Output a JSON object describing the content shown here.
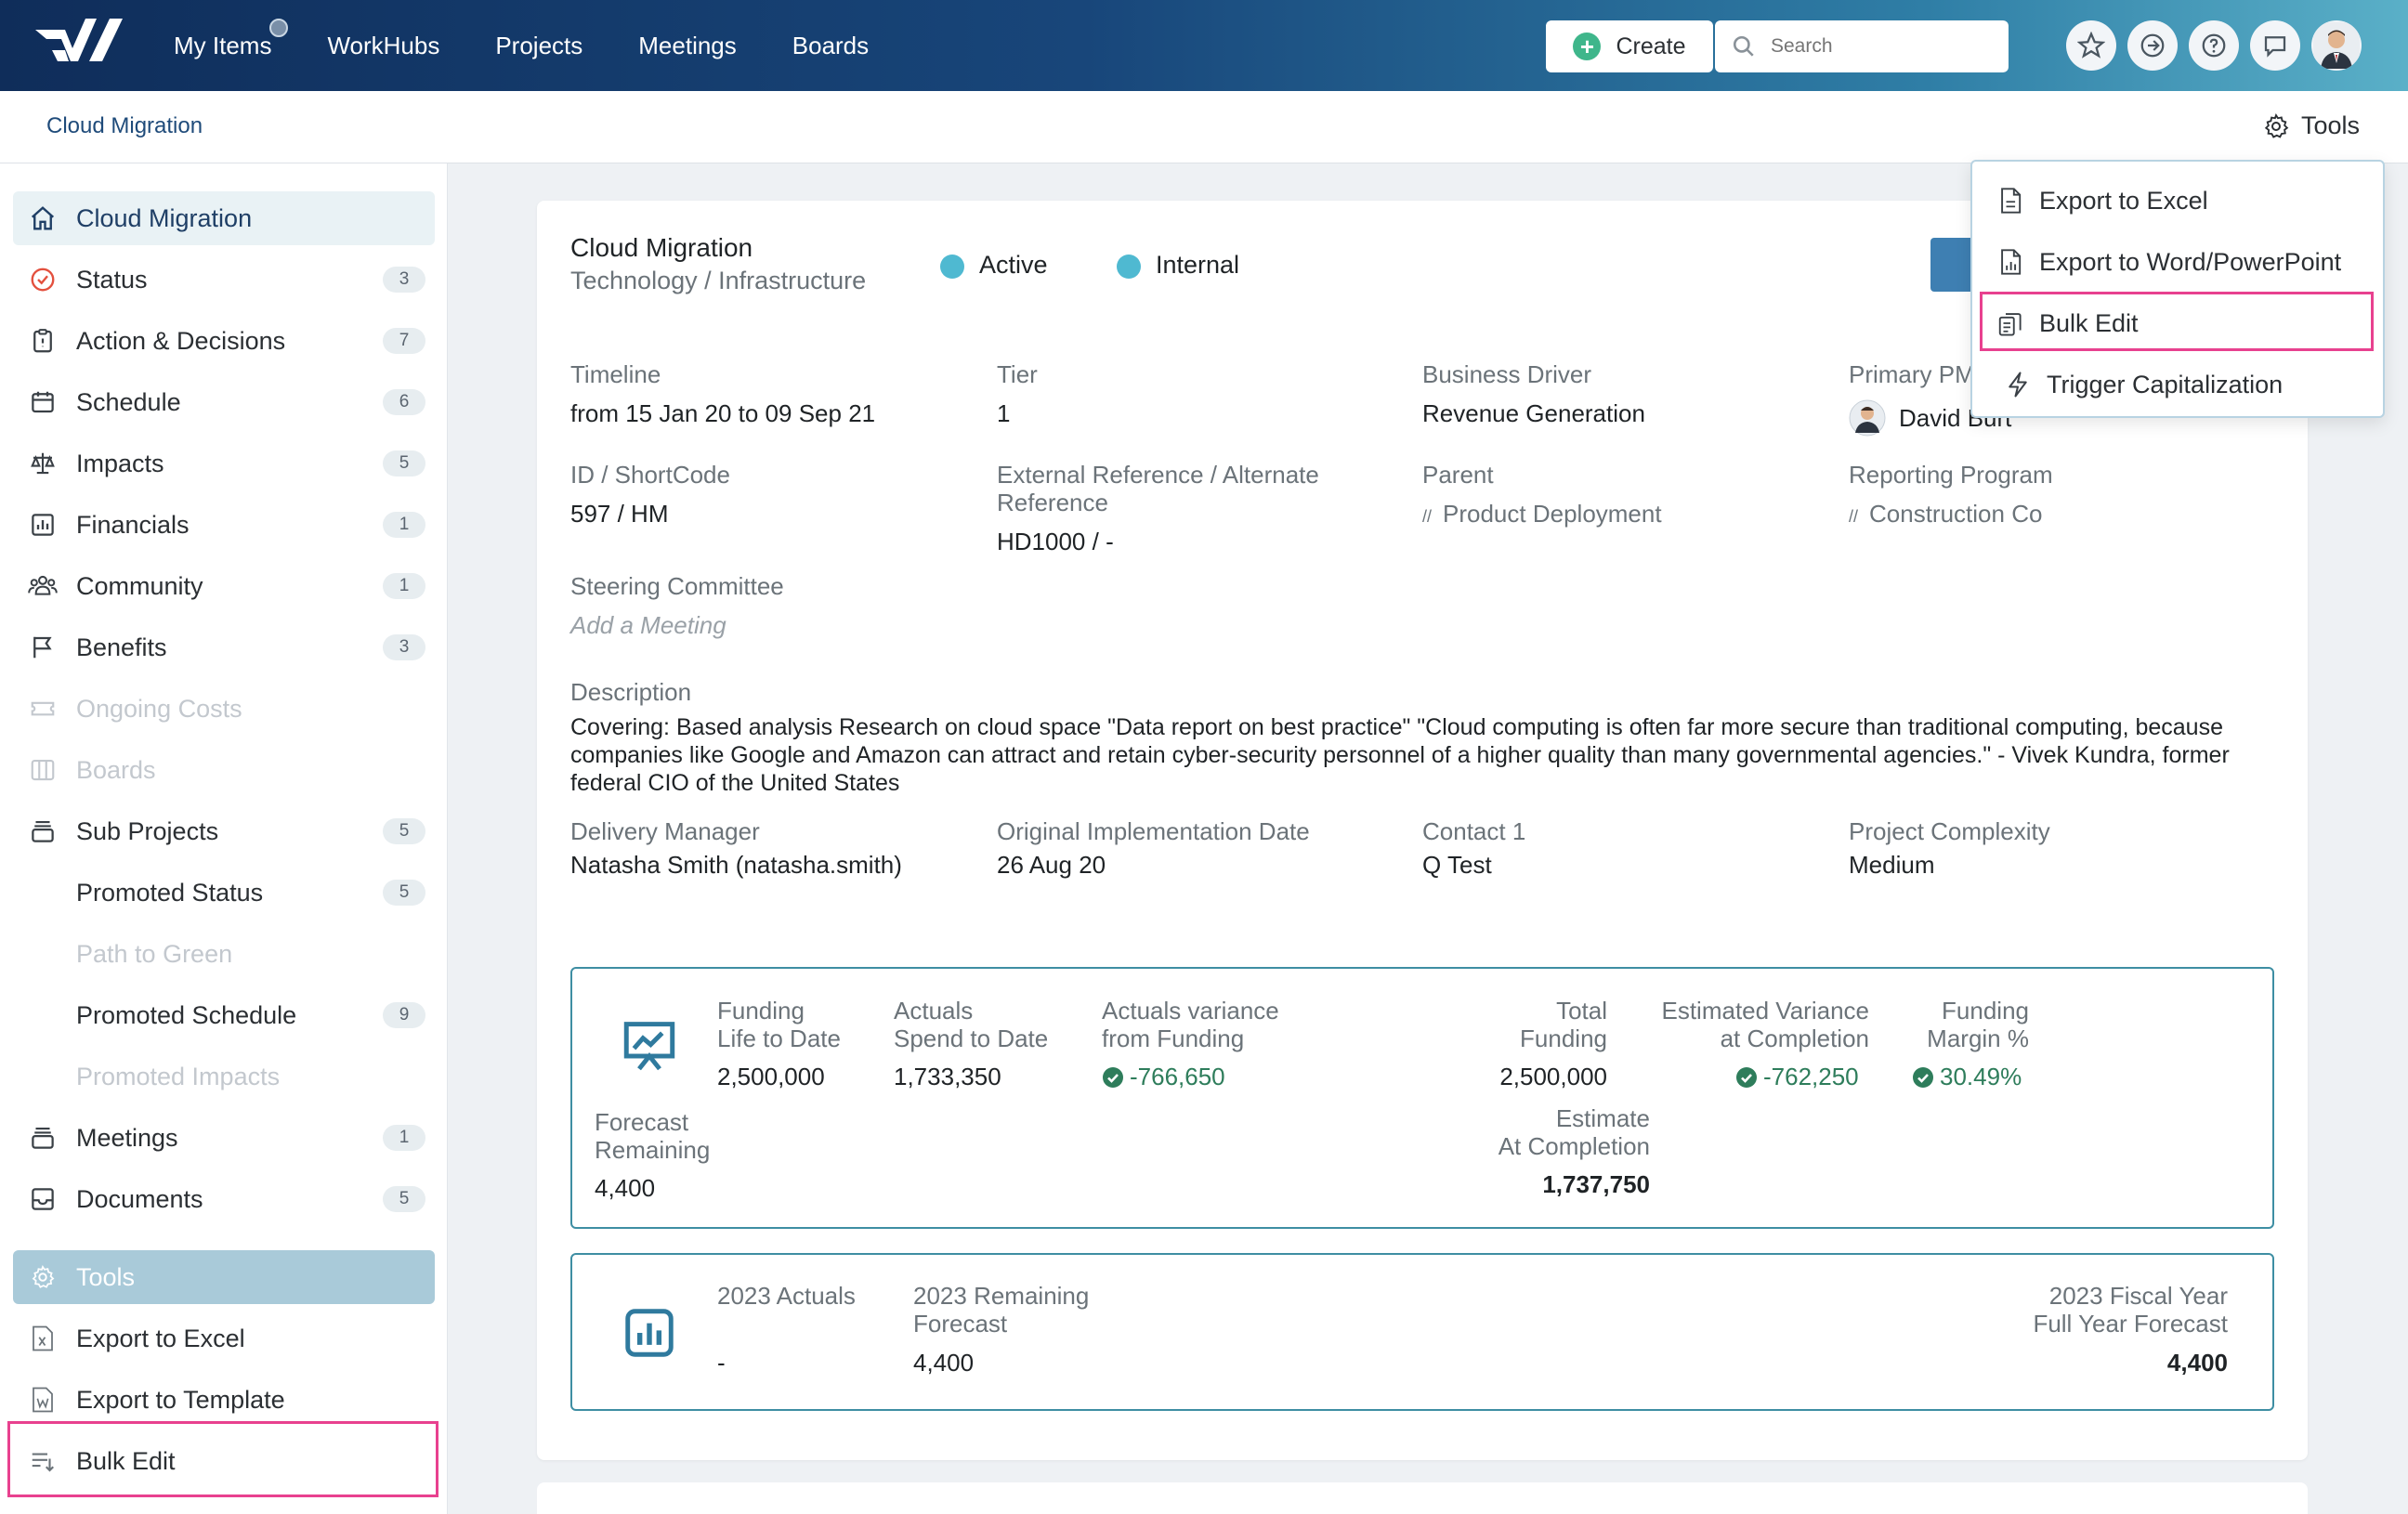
{
  "nav": {
    "items": [
      "My Items",
      "WorkHubs",
      "Projects",
      "Meetings",
      "Boards"
    ],
    "create_label": "Create",
    "search_placeholder": "Search",
    "brand_color": "#18467a"
  },
  "breadcrumb": {
    "title": "Cloud Migration",
    "tools_label": "Tools"
  },
  "sidebar": {
    "items": [
      {
        "label": "Cloud Migration",
        "icon": "home-icon",
        "badge": ""
      },
      {
        "label": "Status",
        "icon": "status-icon",
        "badge": "3"
      },
      {
        "label": "Action & Decisions",
        "icon": "clipboard-icon",
        "badge": "7"
      },
      {
        "label": "Schedule",
        "icon": "calendar-icon",
        "badge": "6"
      },
      {
        "label": "Impacts",
        "icon": "scale-icon",
        "badge": "5"
      },
      {
        "label": "Financials",
        "icon": "chart-icon",
        "badge": "1"
      },
      {
        "label": "Community",
        "icon": "people-icon",
        "badge": "1"
      },
      {
        "label": "Benefits",
        "icon": "flag-icon",
        "badge": "3"
      },
      {
        "label": "Ongoing Costs",
        "icon": "ticket-icon",
        "badge": ""
      },
      {
        "label": "Boards",
        "icon": "board-icon",
        "badge": ""
      },
      {
        "label": "Sub Projects",
        "icon": "stack-icon",
        "badge": "5"
      },
      {
        "label": "Promoted Status",
        "icon": "",
        "badge": "5"
      },
      {
        "label": "Path to Green",
        "icon": "",
        "badge": ""
      },
      {
        "label": "Promoted Schedule",
        "icon": "",
        "badge": "9"
      },
      {
        "label": "Promoted Impacts",
        "icon": "",
        "badge": ""
      },
      {
        "label": "Meetings",
        "icon": "meetings-icon",
        "badge": "1"
      },
      {
        "label": "Documents",
        "icon": "inbox-icon",
        "badge": "5"
      }
    ],
    "tools_label": "Tools",
    "tool_items": [
      {
        "label": "Export to Excel",
        "icon": "excel-file-icon"
      },
      {
        "label": "Export to Template",
        "icon": "word-file-icon"
      },
      {
        "label": "Bulk Edit",
        "icon": "bulk-edit-icon"
      }
    ]
  },
  "project": {
    "name": "Cloud Migration",
    "category": "Technology / Infrastructure",
    "status": "Active",
    "visibility": "Internal",
    "status_color": "#4fb9d1"
  },
  "fields": {
    "timeline_label": "Timeline",
    "timeline_value": "from 15 Jan 20 to 09 Sep 21",
    "tier_label": "Tier",
    "tier_value": "1",
    "driver_label": "Business Driver",
    "driver_value": "Revenue Generation",
    "pm_label": "Primary PM",
    "pm_value": "David Burt",
    "id_label": "ID / ShortCode",
    "id_value": "597 / HM",
    "extref_label_1": "External Reference / Alternate",
    "extref_label_2": "Reference",
    "extref_value": "HD1000 / -",
    "parent_label": "Parent",
    "parent_value": "Product Deployment",
    "program_label": "Reporting Program",
    "program_value": "Construction Co",
    "steering_label": "Steering Committee",
    "steering_value": "Add a Meeting",
    "description_label": "Description",
    "description_value": "Covering: Based analysis Research on cloud space \"Data report on best practice\" \"Cloud computing is often far more secure than traditional computing, because companies like Google and Amazon can attract and retain cyber-security personnel of a higher quality than many governmental agencies.\" - Vivek Kundra, former federal CIO of the United States",
    "delivery_label": "Delivery Manager",
    "delivery_value": "Natasha Smith (natasha.smith)",
    "orig_impl_label": "Original Implementation Date",
    "orig_impl_value": "26 Aug 20",
    "contact_label": "Contact 1",
    "contact_value": "Q Test",
    "complexity_label": "Project Complexity",
    "complexity_value": "Medium"
  },
  "funding": {
    "life_label_1": "Funding",
    "life_label_2": "Life to Date",
    "life_value": "2,500,000",
    "actuals_label_1": "Actuals",
    "actuals_label_2": "Spend to Date",
    "actuals_value": "1,733,350",
    "variance_label_1": "Actuals variance",
    "variance_label_2": "from Funding",
    "variance_value": "-766,650",
    "total_label_1": "Total",
    "total_label_2": "Funding",
    "total_value": "2,500,000",
    "est_var_label_1": "Estimated Variance",
    "est_var_label_2": "at Completion",
    "est_var_value": "-762,250",
    "margin_label_1": "Funding",
    "margin_label_2": "Margin %",
    "margin_value": "30.49%",
    "forecast_label_1": "Forecast",
    "forecast_label_2": "Remaining",
    "forecast_value": "4,400",
    "eac_label_1": "Estimate",
    "eac_label_2": "At Completion",
    "eac_value": "1,737,750"
  },
  "fiscal": {
    "actuals_label": "2023 Actuals",
    "actuals_value": "-",
    "remaining_label_1": "2023 Remaining",
    "remaining_label_2": "Forecast",
    "remaining_value": "4,400",
    "fy_label_1": "2023 Fiscal Year",
    "fy_label_2": "Full Year Forecast",
    "fy_value": "4,400"
  },
  "tools_menu": {
    "items": [
      {
        "label": "Export to Excel",
        "icon": "file-icon"
      },
      {
        "label": "Export to Word/PowerPoint",
        "icon": "file-chart-icon"
      },
      {
        "label": "Bulk Edit",
        "icon": "clipboard-copy-icon"
      },
      {
        "label": "Trigger Capitalization",
        "icon": "lightning-icon"
      }
    ],
    "highlight_color": "#e8418f"
  }
}
